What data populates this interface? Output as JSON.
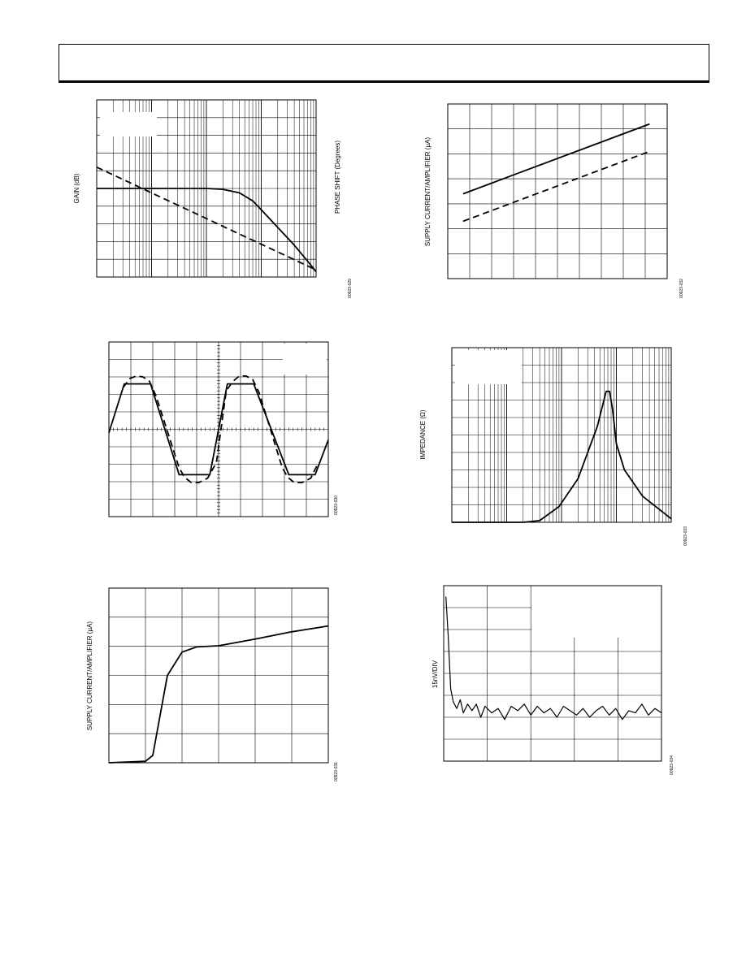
{
  "page": {
    "header_text": ""
  },
  "chart_data": [
    {
      "id": "fig-gain-phase",
      "type": "line",
      "ylabel": "GAIN (dB)",
      "y2label": "PHASE SHIFT (Degrees)",
      "figure_code": "00923-029",
      "xscale": "log",
      "xlim": [
        1,
        10000
      ],
      "ylim": [
        0,
        10
      ],
      "grid": true,
      "series": [
        {
          "style": "solid",
          "x": [
            1,
            100,
            200,
            400,
            700,
            1000,
            2000,
            4000,
            7000,
            10000
          ],
          "y": [
            5,
            5,
            4.95,
            4.75,
            4.3,
            3.8,
            2.8,
            1.8,
            0.9,
            0.3
          ]
        },
        {
          "style": "dashed",
          "x": [
            1,
            10000
          ],
          "y": [
            6.2,
            0.4
          ]
        }
      ]
    },
    {
      "id": "fig-supply-current-temp",
      "type": "line",
      "ylabel": "SUPPLY CURRENT/AMPLIFIER (µA)",
      "figure_code": "00923-032",
      "xlim": [
        0,
        10
      ],
      "ylim": [
        0,
        7
      ],
      "grid": true,
      "series": [
        {
          "style": "solid",
          "x": [
            0.7,
            9.2
          ],
          "y": [
            3.4,
            6.2
          ]
        },
        {
          "style": "dashed",
          "x": [
            0.7,
            9.2
          ],
          "y": [
            2.3,
            5.1
          ]
        }
      ]
    },
    {
      "id": "fig-waveform",
      "type": "line",
      "figure_code": "00923-030",
      "xlim": [
        0,
        10
      ],
      "ylim": [
        -5,
        5
      ],
      "grid": true,
      "series": [
        {
          "style": "solid",
          "x": [
            0,
            0.7,
            1.9,
            3.2,
            4.6,
            5.4,
            6.6,
            8.2,
            9.4,
            10
          ],
          "y": [
            -0.2,
            2.6,
            2.6,
            -2.6,
            -2.6,
            2.6,
            2.6,
            -2.6,
            -2.6,
            -0.6
          ]
        },
        {
          "style": "dashed",
          "x": [
            0.65,
            0.95,
            1.25,
            1.55,
            1.85,
            2.15,
            3.2,
            3.45,
            3.75,
            4.1,
            4.5,
            4.9,
            5.35,
            5.65,
            5.95,
            6.25,
            6.55,
            6.85,
            7.9,
            8.15,
            8.45,
            8.8,
            9.2,
            9.55
          ],
          "y": [
            2.4,
            2.9,
            3.05,
            3.0,
            2.75,
            1.9,
            -2.2,
            -2.75,
            -3.05,
            -3.05,
            -2.8,
            -1.9,
            2.2,
            2.75,
            3.05,
            3.05,
            2.85,
            2.1,
            -2.2,
            -2.75,
            -3.05,
            -3.05,
            -2.8,
            -1.9
          ]
        }
      ]
    },
    {
      "id": "fig-impedance",
      "type": "line",
      "ylabel": "IMPEDANCE (Ω)",
      "figure_code": "00923-033",
      "xscale": "log",
      "xlim": [
        10,
        100000
      ],
      "ylim": [
        0,
        10
      ],
      "grid": true,
      "series": [
        {
          "style": "solid",
          "x": [
            10,
            200,
            400,
            900,
            2000,
            4500,
            6500,
            7500,
            8500,
            10000,
            14000,
            30000,
            100000
          ],
          "y": [
            0,
            0,
            0.1,
            0.9,
            2.5,
            5.5,
            7.5,
            7.5,
            6.5,
            4.5,
            3.0,
            1.5,
            0.2
          ]
        }
      ]
    },
    {
      "id": "fig-supply-current-voltage",
      "type": "line",
      "ylabel": "SUPPLY CURRENT/AMPLIFIER (µA)",
      "figure_code": "00923-031",
      "xlim": [
        0,
        6
      ],
      "ylim": [
        0,
        6
      ],
      "grid": true,
      "series": [
        {
          "style": "solid",
          "x": [
            0,
            1,
            1.2,
            1.6,
            2,
            2.4,
            3,
            4,
            5,
            6
          ],
          "y": [
            0,
            0.05,
            0.25,
            3.0,
            3.8,
            3.98,
            4.02,
            4.25,
            4.5,
            4.7
          ]
        }
      ]
    },
    {
      "id": "fig-noise",
      "type": "line",
      "ylabel": "15nV/DIV",
      "figure_code": "00923-034",
      "annotation": "√",
      "xlim": [
        0,
        5
      ],
      "ylim": [
        0,
        8
      ],
      "grid": true,
      "series": [
        {
          "style": "solid",
          "x": [
            0.05,
            0.1,
            0.16,
            0.22,
            0.3,
            0.38,
            0.45,
            0.55,
            0.65,
            0.75,
            0.85,
            0.95,
            1.1,
            1.25,
            1.4,
            1.55,
            1.7,
            1.85,
            2.0,
            2.15,
            2.3,
            2.45,
            2.6,
            2.75,
            2.9,
            3.05,
            3.2,
            3.35,
            3.5,
            3.65,
            3.8,
            3.95,
            4.1,
            4.25,
            4.4,
            4.55,
            4.7,
            4.85,
            5.0
          ],
          "y": [
            7.5,
            5.8,
            3.3,
            2.7,
            2.4,
            2.8,
            2.2,
            2.6,
            2.3,
            2.6,
            2.0,
            2.5,
            2.2,
            2.4,
            1.9,
            2.5,
            2.3,
            2.6,
            2.1,
            2.5,
            2.2,
            2.4,
            2.0,
            2.5,
            2.3,
            2.1,
            2.4,
            2.0,
            2.3,
            2.5,
            2.1,
            2.4,
            1.9,
            2.3,
            2.2,
            2.6,
            2.1,
            2.4,
            2.2
          ]
        }
      ]
    }
  ]
}
